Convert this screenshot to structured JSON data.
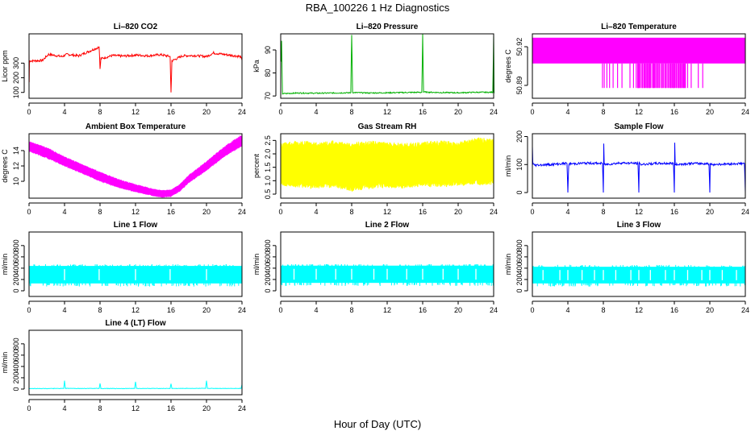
{
  "figure": {
    "title": "RBA_100226  1 Hz Diagnostics",
    "xlabel": "Hour of Day (UTC)"
  },
  "colors": {
    "red": "#ff0000",
    "green": "#00b000",
    "magenta": "#ff00ff",
    "yellow": "#ffff00",
    "blue": "#0000ff",
    "cyan": "#00ffff",
    "axis": "#000000"
  },
  "chart_data": [
    {
      "id": "co2",
      "type": "line",
      "title": "Li–820 CO2",
      "ylabel": "Licor ppm",
      "color": "red",
      "xlim": [
        0,
        24
      ],
      "ylim": [
        60,
        500
      ],
      "xticks": [
        0,
        4,
        8,
        12,
        16,
        20,
        24
      ],
      "yticks": [
        100,
        200,
        300
      ],
      "render": "line",
      "noise": 8,
      "x": [
        0,
        0.02,
        0.05,
        1.5,
        2.2,
        3.7,
        4.3,
        5.6,
        7.9,
        8.0,
        8.1,
        9.4,
        10.6,
        12.1,
        13.4,
        14.8,
        15.9,
        16.0,
        16.1,
        17.3,
        18.6,
        20.0,
        20.8,
        21.3,
        22.6,
        23.8,
        24.0
      ],
      "y": [
        380,
        170,
        315,
        318,
        360,
        345,
        360,
        350,
        410,
        260,
        330,
        352,
        348,
        355,
        350,
        358,
        345,
        100,
        315,
        350,
        352,
        345,
        370,
        365,
        355,
        345,
        320
      ]
    },
    {
      "id": "pressure",
      "type": "line",
      "title": "Li–820 Pressure",
      "ylabel": "kPa",
      "color": "green",
      "xlim": [
        0,
        24
      ],
      "ylim": [
        69,
        97
      ],
      "xticks": [
        0,
        4,
        8,
        12,
        16,
        20,
        24
      ],
      "yticks": [
        70,
        80,
        90
      ],
      "render": "line",
      "noise": 0.25,
      "x": [
        0,
        0.05,
        0.1,
        0.2,
        2,
        4,
        7.9,
        8.0,
        8.1,
        10,
        12,
        14,
        15.9,
        16.0,
        16.1,
        18,
        20,
        22,
        23.9,
        24.0,
        24.05
      ],
      "y": [
        89,
        85,
        94,
        71.0,
        71.3,
        71.2,
        71.4,
        96.5,
        71.5,
        71.3,
        71.4,
        71.5,
        71.6,
        97,
        71.7,
        71.5,
        71.4,
        71.6,
        71.6,
        96.5,
        71.2
      ]
    },
    {
      "id": "li820temp",
      "type": "band",
      "title": "Li–820 Temperature",
      "ylabel": "degrees C",
      "color": "magenta",
      "xlim": [
        0,
        24
      ],
      "ylim": [
        50.88,
        50.93
      ],
      "xticks": [
        0,
        4,
        8,
        12,
        16,
        20,
        24
      ],
      "yticks": [
        50.89,
        50.92
      ],
      "levels": [
        50.927,
        50.907,
        50.888
      ],
      "dips": [
        7.9,
        8.1,
        8.4,
        8.7,
        9.1,
        9.6,
        10.1,
        11.0,
        11.4,
        11.7,
        12.1,
        12.4,
        12.6,
        12.9,
        13.3,
        13.6,
        14.0,
        14.3,
        14.6,
        15.0,
        15.3,
        15.6,
        15.9,
        16.2,
        16.5,
        16.8,
        17.1,
        17.5,
        17.9,
        18.7,
        19.2
      ],
      "dense": [
        11.8,
        17.3
      ]
    },
    {
      "id": "ambtemp",
      "type": "area",
      "title": "Ambient Box Temperature",
      "ylabel": "degrees C",
      "color": "magenta",
      "xlim": [
        0,
        24
      ],
      "ylim": [
        7.8,
        16.2
      ],
      "xticks": [
        0,
        4,
        8,
        12,
        16,
        20,
        24
      ],
      "yticks": [
        10,
        12,
        14
      ],
      "x": [
        0,
        2,
        4,
        6,
        8,
        10,
        12,
        14,
        15,
        16,
        17,
        18,
        20,
        22,
        24
      ],
      "lower": [
        13.9,
        13.0,
        12.0,
        11.0,
        10.0,
        9.2,
        8.6,
        8.1,
        7.9,
        8.0,
        8.7,
        9.8,
        11.4,
        13.2,
        14.6
      ],
      "upper": [
        15.2,
        14.4,
        13.2,
        12.2,
        11.2,
        10.3,
        9.6,
        9.0,
        8.8,
        8.9,
        9.6,
        10.8,
        12.6,
        14.5,
        16.1
      ]
    },
    {
      "id": "rh",
      "type": "area",
      "title": "Gas Stream RH",
      "ylabel": "percent",
      "color": "yellow",
      "xlim": [
        0,
        24
      ],
      "ylim": [
        0.35,
        2.75
      ],
      "xticks": [
        0,
        4,
        8,
        12,
        16,
        20,
        24
      ],
      "yticks": [
        0.5,
        1.0,
        1.5,
        2.0,
        2.5
      ],
      "x": [
        0,
        2,
        4,
        6,
        8,
        10,
        12,
        14,
        16,
        18,
        20,
        22,
        24
      ],
      "lower": [
        0.8,
        0.75,
        0.7,
        0.75,
        0.6,
        0.7,
        0.75,
        0.7,
        0.8,
        0.75,
        0.8,
        0.85,
        0.85
      ],
      "upper": [
        2.4,
        2.5,
        2.45,
        2.5,
        2.4,
        2.5,
        2.45,
        2.4,
        2.45,
        2.5,
        2.45,
        2.6,
        2.6
      ]
    },
    {
      "id": "sampleflow",
      "type": "line",
      "title": "Sample Flow",
      "ylabel": "ml/min",
      "color": "blue",
      "xlim": [
        0,
        24
      ],
      "ylim": [
        -20,
        210
      ],
      "xticks": [
        0,
        4,
        8,
        12,
        16,
        20,
        24
      ],
      "yticks": [
        0,
        100,
        200
      ],
      "render": "line",
      "noise": 4,
      "x": [
        0,
        0.05,
        0.1,
        0.3,
        2,
        3.9,
        4.0,
        4.1,
        6,
        7.9,
        8.0,
        8.05,
        8.1,
        10,
        11.9,
        12.0,
        12.05,
        12.1,
        14,
        15.9,
        16.0,
        16.05,
        16.1,
        18,
        19.9,
        20.0,
        20.05,
        20.1,
        22,
        23.9,
        24.0
      ],
      "y": [
        165,
        110,
        100,
        98,
        100,
        104,
        0,
        102,
        105,
        104,
        0,
        175,
        100,
        106,
        104,
        0,
        110,
        100,
        104,
        104,
        0,
        178,
        100,
        104,
        103,
        0,
        105,
        100,
        102,
        104,
        0
      ]
    },
    {
      "id": "line1",
      "type": "band",
      "title": "Line 1 Flow",
      "ylabel": "ml/min",
      "color": "cyan",
      "xlim": [
        0,
        24
      ],
      "ylim": [
        -100,
        1040
      ],
      "xticks": [
        0,
        4,
        8,
        12,
        16,
        20,
        24
      ],
      "yticks": [
        0,
        200,
        400,
        600,
        800
      ],
      "top": [
        430,
        450
      ],
      "bottom": 130,
      "gaps": [
        4.0,
        7.9,
        12.0,
        15.9,
        20.0
      ]
    },
    {
      "id": "line2",
      "type": "band",
      "title": "Line 2 Flow",
      "ylabel": "ml/min",
      "color": "cyan",
      "xlim": [
        0,
        24
      ],
      "ylim": [
        -100,
        1040
      ],
      "xticks": [
        0,
        4,
        8,
        12,
        16,
        20,
        24
      ],
      "yticks": [
        0,
        200,
        400,
        600,
        800
      ],
      "top": [
        440,
        450
      ],
      "bottom": 140,
      "gaps": [
        1.5,
        4.0,
        6.2,
        8.0,
        10.5,
        12.0,
        14.2,
        16.0,
        18.3,
        20.0,
        22.0
      ]
    },
    {
      "id": "line3",
      "type": "band",
      "title": "Line 3 Flow",
      "ylabel": "ml/min",
      "color": "cyan",
      "xlim": [
        0,
        24
      ],
      "ylim": [
        -100,
        1040
      ],
      "xticks": [
        0,
        4,
        8,
        12,
        16,
        20,
        24
      ],
      "yticks": [
        0,
        200,
        400,
        600,
        800
      ],
      "top": [
        410,
        440
      ],
      "bottom": 130,
      "gaps": [
        1.2,
        3.1,
        4.0,
        5.6,
        7.0,
        8.0,
        9.4,
        11.1,
        12.0,
        13.3,
        15.0,
        16.0,
        17.5,
        19.1,
        20.0,
        21.4,
        23.0
      ]
    },
    {
      "id": "line4",
      "type": "line",
      "title": "Line 4 (LT) Flow",
      "ylabel": "ml/min",
      "color": "cyan",
      "xlim": [
        0,
        24
      ],
      "ylim": [
        -100,
        1040
      ],
      "xticks": [
        0,
        4,
        8,
        12,
        16,
        20,
        24
      ],
      "yticks": [
        0,
        200,
        400,
        600,
        800
      ],
      "render": "line",
      "noise": 4,
      "x": [
        0,
        1,
        2,
        3.9,
        4.0,
        4.1,
        6,
        7.9,
        8.0,
        8.1,
        10,
        11.9,
        12.0,
        12.1,
        14,
        15.9,
        16.0,
        16.1,
        18,
        19.9,
        20.0,
        20.1,
        22,
        23.9,
        24.0
      ],
      "y": [
        8,
        10,
        9,
        10,
        150,
        12,
        10,
        11,
        100,
        10,
        9,
        11,
        130,
        10,
        11,
        10,
        95,
        10,
        12,
        11,
        150,
        12,
        11,
        12,
        80
      ]
    }
  ]
}
